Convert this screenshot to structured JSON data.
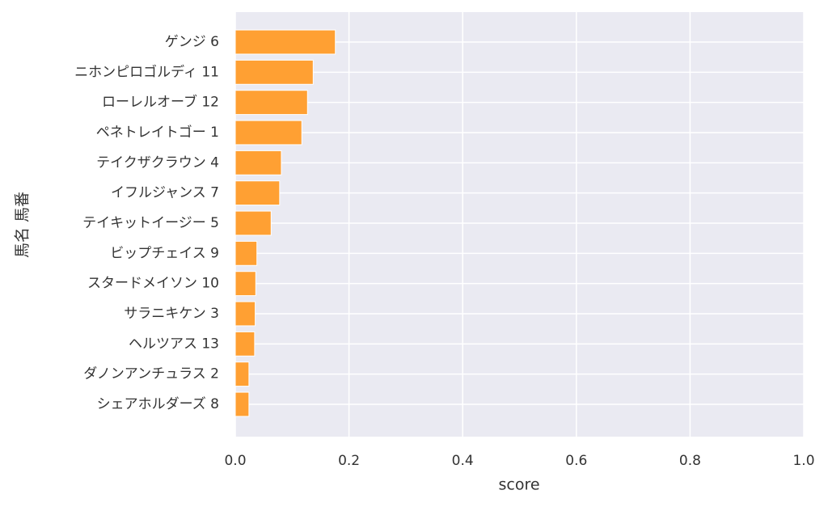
{
  "chart_data": {
    "type": "barh",
    "categories": [
      "ゲンジ 6",
      "ニホンピロゴルディ 11",
      "ローレルオーブ 12",
      "ペネトレイトゴー 1",
      "テイクザクラウン 4",
      "イフルジャンス 7",
      "テイキットイージー 5",
      "ビップチェイス 9",
      "スタードメイソン 10",
      "サラニキケン 3",
      "ヘルツアス 13",
      "ダノンアンチュラス 2",
      "シェアホルダーズ 8"
    ],
    "values": [
      0.176,
      0.137,
      0.127,
      0.117,
      0.081,
      0.078,
      0.063,
      0.038,
      0.036,
      0.035,
      0.034,
      0.024,
      0.024
    ],
    "color": "#ffa033",
    "xlabel": "score",
    "ylabel": "馬名 馬番",
    "xlim": [
      0,
      1
    ],
    "xticks": [
      {
        "value": 0,
        "label": "0.0"
      },
      0.2,
      0.4,
      0.6,
      0.8,
      {
        "value": 1,
        "label": "1.0"
      }
    ],
    "grid": true
  }
}
